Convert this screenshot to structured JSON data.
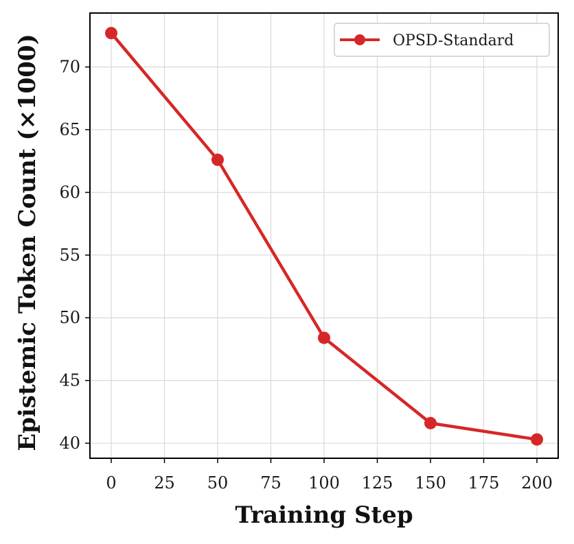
{
  "chart_data": {
    "type": "line",
    "title": "",
    "xlabel": "Training Step",
    "ylabel": "Epistemic Token Count (×1000)",
    "x": [
      0,
      50,
      100,
      150,
      200
    ],
    "series": [
      {
        "name": "OPSD-Standard",
        "values": [
          72.7,
          62.6,
          48.4,
          41.6,
          40.3
        ],
        "color": "#d62728",
        "marker": "circle"
      }
    ],
    "xlim": [
      -10,
      210
    ],
    "ylim": [
      38.8,
      74.3
    ],
    "xticks": [
      0,
      25,
      50,
      75,
      100,
      125,
      150,
      175,
      200
    ],
    "xtick_labels": [
      "0",
      "25",
      "50",
      "75",
      "100",
      "125",
      "150",
      "175",
      "200"
    ],
    "yticks": [
      40,
      45,
      50,
      55,
      60,
      65,
      70
    ],
    "ytick_labels": [
      "40",
      "45",
      "50",
      "55",
      "60",
      "65",
      "70"
    ],
    "grid": true,
    "legend_position": "top-right"
  }
}
